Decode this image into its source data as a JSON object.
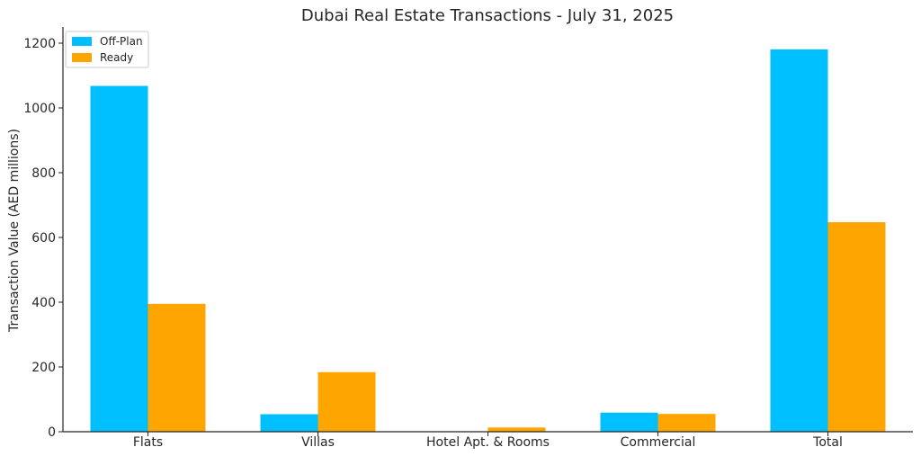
{
  "chart_data": {
    "type": "bar",
    "title": "Dubai Real Estate Transactions - July 31, 2025",
    "xlabel": "",
    "ylabel": "Transaction Value (AED millions)",
    "categories": [
      "Flats",
      "Villas",
      "Hotel Apt. & Rooms",
      "Commercial",
      "Total"
    ],
    "series": [
      {
        "name": "Off-Plan",
        "color": "#00bfff",
        "values": [
          1068,
          54,
          0,
          59,
          1181
        ]
      },
      {
        "name": "Ready",
        "color": "#ffa500",
        "values": [
          395,
          184,
          13,
          55,
          647
        ]
      }
    ],
    "ylim": [
      0,
      1250
    ],
    "yticks": [
      0,
      200,
      400,
      600,
      800,
      1000,
      1200
    ],
    "grid": false,
    "legend_position": "top-left"
  }
}
